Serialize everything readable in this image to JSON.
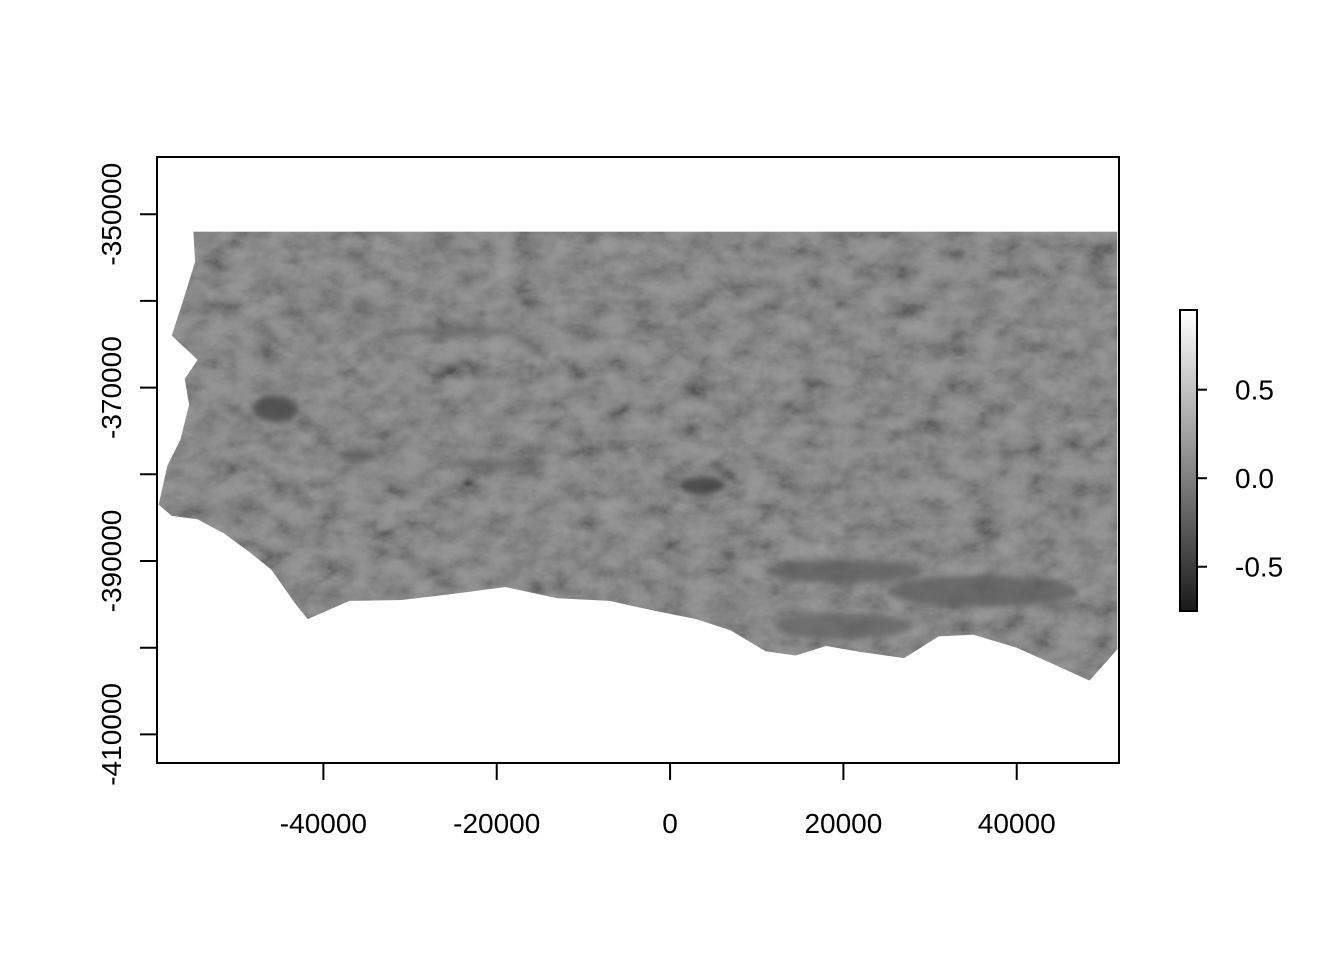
{
  "chart_data": {
    "type": "heatmap",
    "title": "",
    "xlabel": "",
    "ylabel": "",
    "xlim": [
      -59200,
      51800
    ],
    "ylim": [
      -413300,
      -343400
    ],
    "x_ticks": [
      -40000,
      -20000,
      0,
      20000,
      40000
    ],
    "x_tick_labels": [
      "-40000",
      "-20000",
      "0",
      "20000",
      "40000"
    ],
    "y_ticks": [
      -350000,
      -360000,
      -370000,
      -380000,
      -390000,
      -400000,
      -410000
    ],
    "y_tick_labels": [
      "-350000",
      "",
      "-370000",
      "",
      "-390000",
      "",
      "-410000"
    ],
    "colorbar": {
      "range": [
        -0.75,
        0.95
      ],
      "ticks": [
        0.5,
        0.0,
        -0.5
      ],
      "tick_labels": [
        "0.5",
        "0.0",
        "-0.5"
      ],
      "colormap": "grayscale",
      "low_color": "#1a1a1a",
      "high_color": "#ffffff"
    },
    "raster_extent": {
      "xmin": -59200,
      "xmax": 51800,
      "ymin": -404000,
      "ymax": -352000
    },
    "raster_outline": [
      [
        -55000,
        -352000
      ],
      [
        51600,
        -352000
      ],
      [
        51600,
        -400200
      ],
      [
        48400,
        -403800
      ],
      [
        44000,
        -401800
      ],
      [
        40000,
        -400000
      ],
      [
        35000,
        -398500
      ],
      [
        31000,
        -398700
      ],
      [
        27000,
        -401200
      ],
      [
        22000,
        -400500
      ],
      [
        18000,
        -399800
      ],
      [
        14500,
        -400900
      ],
      [
        11000,
        -400400
      ],
      [
        7000,
        -398000
      ],
      [
        3000,
        -396700
      ],
      [
        -2000,
        -395700
      ],
      [
        -7000,
        -394600
      ],
      [
        -13000,
        -394300
      ],
      [
        -19000,
        -393000
      ],
      [
        -25000,
        -393800
      ],
      [
        -31000,
        -394500
      ],
      [
        -37000,
        -394600
      ],
      [
        -41800,
        -396700
      ],
      [
        -43200,
        -395000
      ],
      [
        -46000,
        -391000
      ],
      [
        -48500,
        -389000
      ],
      [
        -51500,
        -386800
      ],
      [
        -54500,
        -385200
      ],
      [
        -57500,
        -384800
      ],
      [
        -59000,
        -383500
      ],
      [
        -58000,
        -379000
      ],
      [
        -56500,
        -376000
      ],
      [
        -55500,
        -372000
      ],
      [
        -56000,
        -369000
      ],
      [
        -54500,
        -366800
      ],
      [
        -57500,
        -364000
      ],
      [
        -56200,
        -360000
      ],
      [
        -54800,
        -355500
      ],
      [
        -55000,
        -352000
      ]
    ],
    "dark_features": [
      {
        "x": -45500,
        "y": -372500,
        "rx": 2600,
        "ry": 1500,
        "value": -0.45
      },
      {
        "x": 3700,
        "y": -381300,
        "rx": 2600,
        "ry": 1000,
        "value": -0.55
      },
      {
        "x": 20000,
        "y": -391200,
        "rx": 9000,
        "ry": 1300,
        "value": -0.25
      },
      {
        "x": 36000,
        "y": -393500,
        "rx": 11000,
        "ry": 1800,
        "value": -0.25
      },
      {
        "x": 20000,
        "y": -397500,
        "rx": 8000,
        "ry": 1500,
        "value": -0.2
      },
      {
        "x": -25000,
        "y": -363500,
        "rx": 7000,
        "ry": 500,
        "value": -0.15
      },
      {
        "x": -20000,
        "y": -378800,
        "rx": 6000,
        "ry": 600,
        "value": -0.15
      },
      {
        "x": -36000,
        "y": -377800,
        "rx": 2200,
        "ry": 700,
        "value": -0.25
      }
    ]
  }
}
